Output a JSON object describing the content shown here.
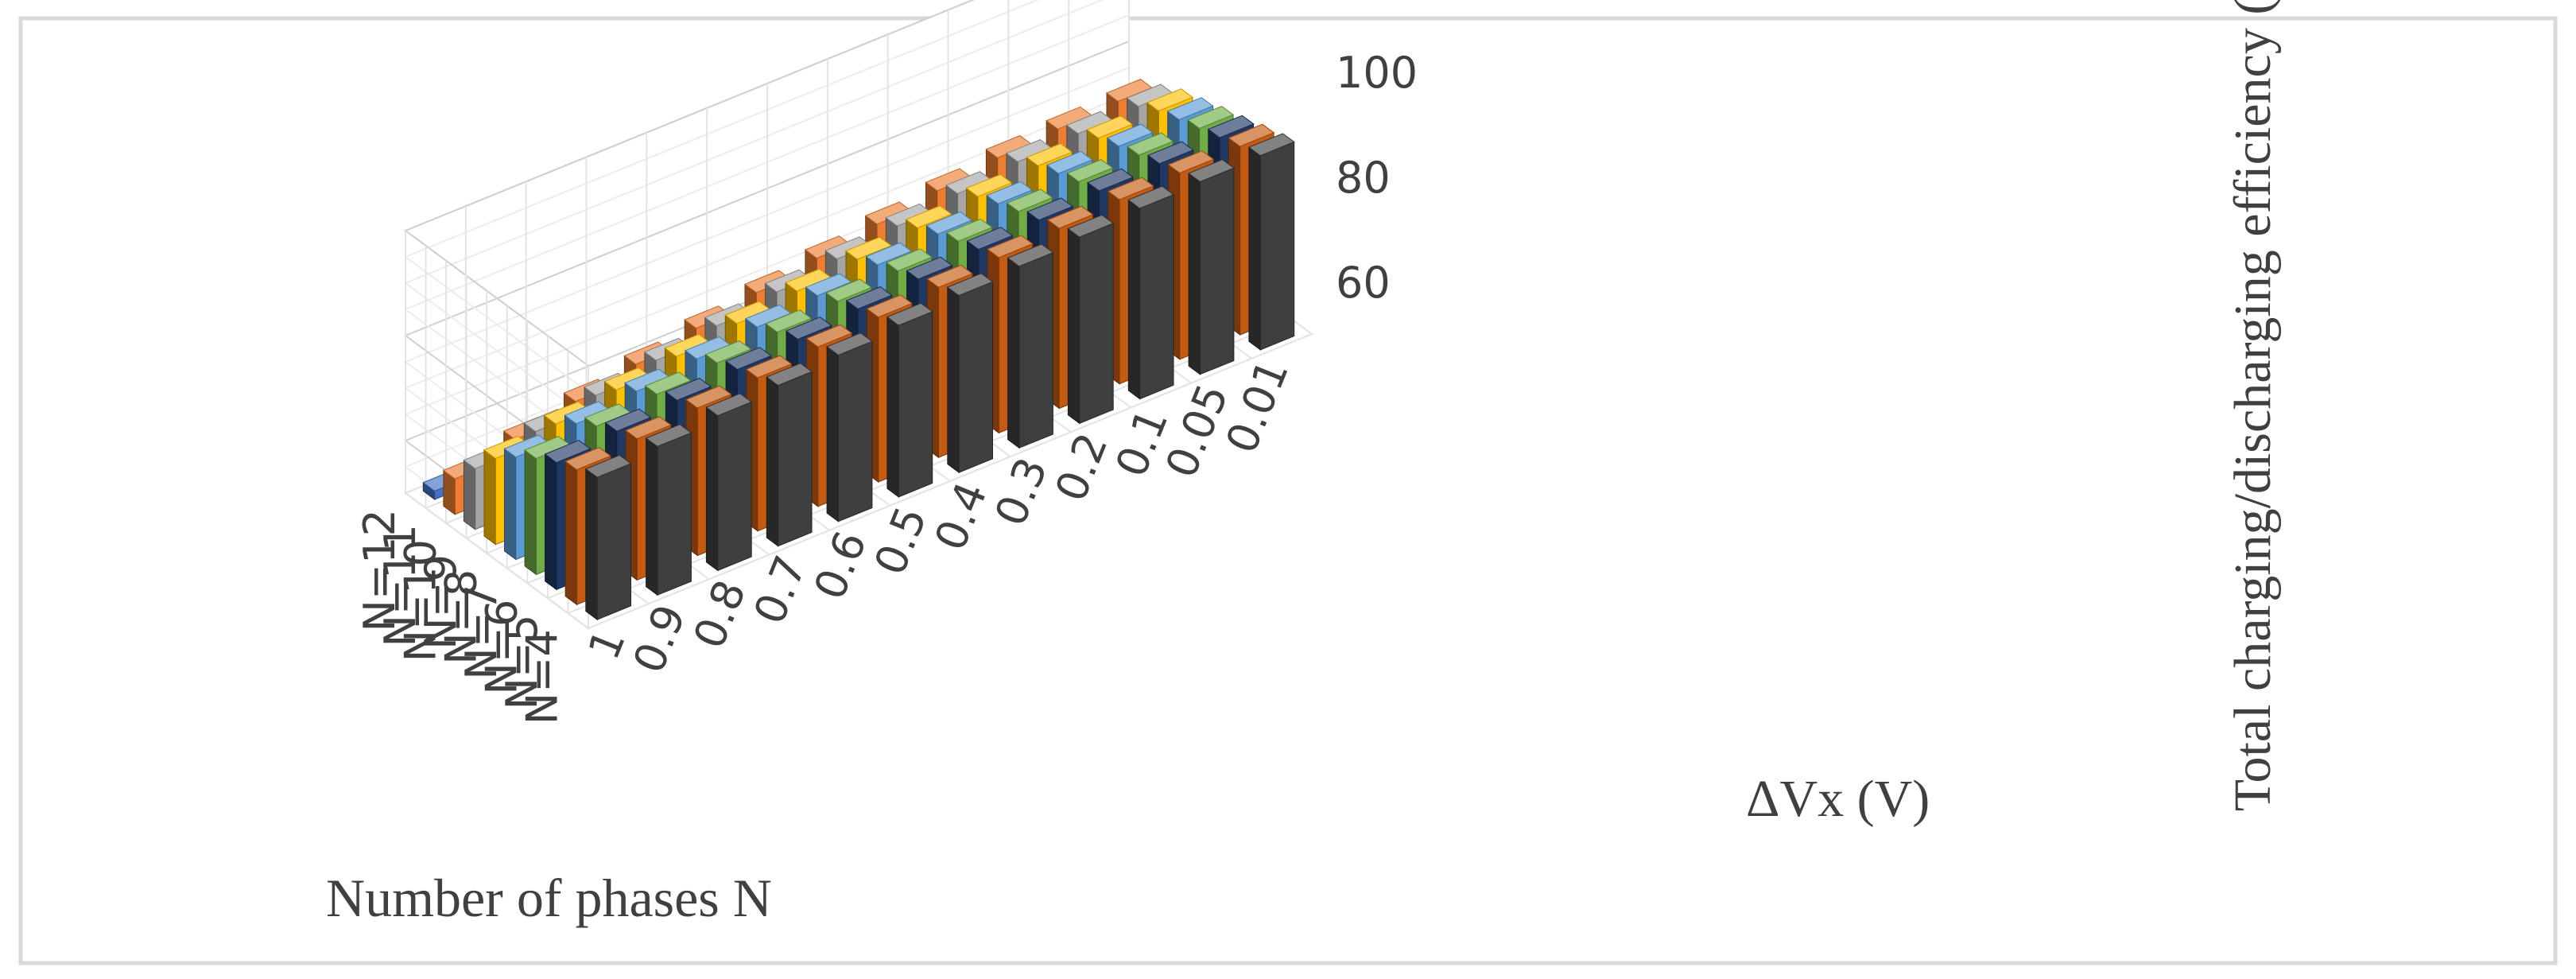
{
  "chart_data": {
    "type": "bar",
    "subtype": "3d-column",
    "title": "",
    "xlabel": "Number of phases N",
    "ylabel": "ΔVx (V)",
    "zlabel": "Total charging/discharging efficiency (%)",
    "zlim": [
      50,
      100
    ],
    "zticks": [
      "60",
      "80",
      "100"
    ],
    "grid": true,
    "legend": "none",
    "phases": [
      "N=12",
      "N=11",
      "N=10",
      "N=9",
      "N=8",
      "N=7",
      "N=6",
      "N=5",
      "N=4"
    ],
    "dv": [
      "1",
      "0.9",
      "0.8",
      "0.7",
      "0.6",
      "0.5",
      "0.4",
      "0.3",
      "0.2",
      "0.1",
      "0.05",
      "0.01"
    ],
    "series": [
      {
        "name": "N=12",
        "color": "#3f3f3f",
        "values": [
          77.1,
          78.3,
          79.5,
          80.6,
          81.7,
          82.7,
          83.7,
          84.6,
          85.5,
          86.3,
          86.7,
          87.0
        ]
      },
      {
        "name": "N=11",
        "color": "#c55a11",
        "values": [
          75.7,
          76.9,
          78.1,
          79.2,
          80.4,
          81.4,
          82.4,
          83.4,
          84.3,
          85.1,
          85.5,
          85.9
        ]
      },
      {
        "name": "N=10",
        "color": "#203864",
        "values": [
          74.2,
          75.5,
          76.7,
          77.9,
          79.0,
          80.1,
          81.1,
          82.1,
          83.0,
          83.9,
          84.4,
          84.7
        ]
      },
      {
        "name": "N=9",
        "color": "#70ad47",
        "values": [
          72.1,
          73.6,
          75.0,
          76.3,
          77.5,
          78.7,
          79.8,
          80.8,
          81.8,
          82.8,
          83.2,
          83.6
        ]
      },
      {
        "name": "N=8",
        "color": "#5b9bd5",
        "values": [
          69.5,
          71.2,
          72.7,
          74.2,
          75.6,
          76.9,
          78.1,
          79.3,
          80.4,
          81.5,
          82.0,
          82.4
        ]
      },
      {
        "name": "N=7",
        "color": "#ffc000",
        "values": [
          66.4,
          68.3,
          70.1,
          71.8,
          73.4,
          74.9,
          76.3,
          77.6,
          78.9,
          80.1,
          80.7,
          81.2
        ]
      },
      {
        "name": "N=6",
        "color": "#a5a5a5",
        "values": [
          61.6,
          64.0,
          66.2,
          68.2,
          70.1,
          71.9,
          73.5,
          75.1,
          76.6,
          78.0,
          78.7,
          79.2
        ]
      },
      {
        "name": "N=5",
        "color": "#ed7d31",
        "values": [
          56.8,
          59.6,
          62.2,
          64.6,
          66.8,
          68.9,
          70.8,
          72.6,
          74.3,
          75.9,
          76.7,
          77.3
        ]
      },
      {
        "name": "N=4",
        "color": "#4472c4",
        "values": [
          51.6,
          52.3,
          53.0,
          53.7,
          54.4,
          55.1,
          55.9,
          56.7,
          57.5,
          58.4,
          58.9,
          59.4
        ]
      }
    ]
  }
}
